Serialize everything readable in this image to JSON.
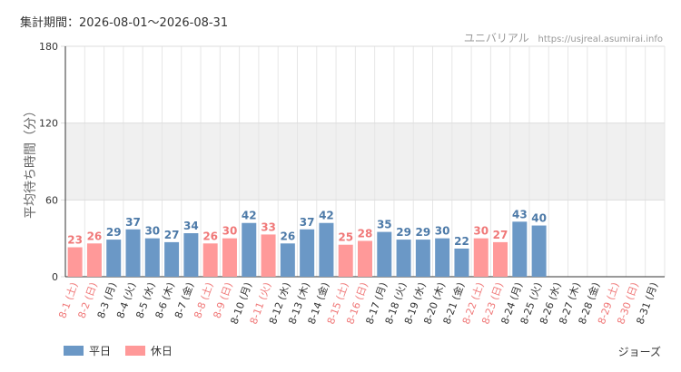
{
  "header": {
    "period": "集計期間：2026-08-01～2026-08-31",
    "site_name": "ユニバリアル",
    "site_url": "https://usjreal.asumirai.info"
  },
  "attraction_name": "ジョーズ",
  "legend": {
    "weekday": "平日",
    "holiday": "休日"
  },
  "colors": {
    "weekday": "#6b98c6",
    "holiday": "#ff9999",
    "weekday_text": "#4d7aa8",
    "holiday_text": "#f07878",
    "band": "#f0f0f0"
  },
  "chart_data": {
    "type": "bar",
    "ylabel": "平均待ち時間（分）",
    "ylim": [
      0,
      180
    ],
    "yticks": [
      0,
      60,
      120,
      180
    ],
    "shaded_band": [
      60,
      120
    ],
    "grid": true,
    "legend_position": "bottom-left",
    "categories": [
      "8-1 (土)",
      "8-2 (日)",
      "8-3 (月)",
      "8-4 (火)",
      "8-5 (水)",
      "8-6 (木)",
      "8-7 (金)",
      "8-8 (土)",
      "8-9 (日)",
      "8-10 (月)",
      "8-11 (火)",
      "8-12 (水)",
      "8-13 (木)",
      "8-14 (金)",
      "8-15 (土)",
      "8-16 (日)",
      "8-17 (月)",
      "8-18 (火)",
      "8-19 (水)",
      "8-20 (木)",
      "8-21 (金)",
      "8-22 (土)",
      "8-23 (日)",
      "8-24 (月)",
      "8-25 (火)",
      "8-26 (水)",
      "8-27 (木)",
      "8-28 (金)",
      "8-29 (土)",
      "8-30 (日)",
      "8-31 (月)"
    ],
    "day_type": [
      "holiday",
      "holiday",
      "weekday",
      "weekday",
      "weekday",
      "weekday",
      "weekday",
      "holiday",
      "holiday",
      "weekday",
      "holiday",
      "weekday",
      "weekday",
      "weekday",
      "holiday",
      "holiday",
      "weekday",
      "weekday",
      "weekday",
      "weekday",
      "weekday",
      "holiday",
      "holiday",
      "weekday",
      "weekday",
      "weekday",
      "weekday",
      "weekday",
      "holiday",
      "holiday",
      "weekday"
    ],
    "values": [
      23,
      26,
      29,
      37,
      30,
      27,
      34,
      26,
      30,
      42,
      33,
      26,
      37,
      42,
      25,
      28,
      35,
      29,
      29,
      30,
      22,
      30,
      27,
      43,
      40,
      null,
      null,
      null,
      null,
      null,
      null
    ]
  }
}
